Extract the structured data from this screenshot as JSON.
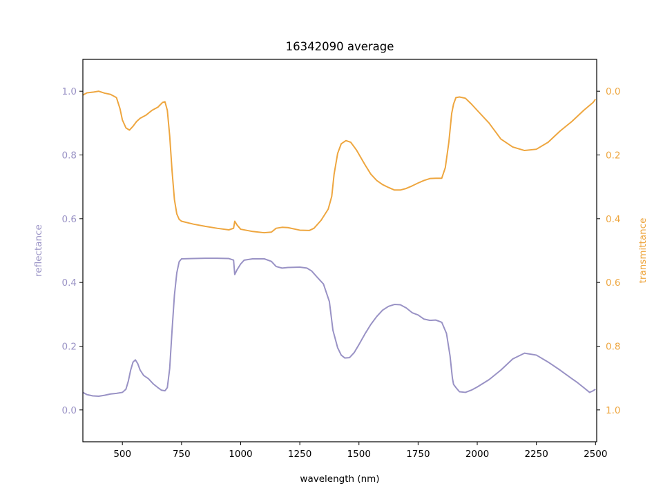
{
  "chart_data": {
    "type": "line",
    "title": "16342090 average",
    "xlabel": "wavelength (nm)",
    "y_left_label": "reflectance",
    "y_right_label": "transmittance",
    "xlim": [
      333,
      2505
    ],
    "y_left_lim": [
      -0.1,
      1.1
    ],
    "y_right_invert": true,
    "x_ticks": [
      500,
      750,
      1000,
      1250,
      1500,
      1750,
      2000,
      2250,
      2500
    ],
    "y_left_ticks": [
      "0.0",
      "0.2",
      "0.4",
      "0.6",
      "0.8",
      "1.0"
    ],
    "y_right_ticks": [
      "0.0",
      "0.2",
      "0.4",
      "0.6",
      "0.8",
      "1.0"
    ],
    "grid": false,
    "legend": "none",
    "colors": {
      "reflectance": "#9992c5",
      "transmittance": "#eea63f",
      "axis": "#000000"
    },
    "series": [
      {
        "name": "reflectance",
        "axis": "left",
        "points": [
          [
            333,
            0.055
          ],
          [
            350,
            0.048
          ],
          [
            375,
            0.044
          ],
          [
            400,
            0.043
          ],
          [
            425,
            0.046
          ],
          [
            450,
            0.05
          ],
          [
            475,
            0.052
          ],
          [
            500,
            0.055
          ],
          [
            515,
            0.065
          ],
          [
            525,
            0.09
          ],
          [
            535,
            0.125
          ],
          [
            545,
            0.15
          ],
          [
            555,
            0.157
          ],
          [
            565,
            0.145
          ],
          [
            575,
            0.125
          ],
          [
            590,
            0.108
          ],
          [
            610,
            0.098
          ],
          [
            630,
            0.082
          ],
          [
            650,
            0.07
          ],
          [
            665,
            0.062
          ],
          [
            680,
            0.06
          ],
          [
            690,
            0.07
          ],
          [
            700,
            0.13
          ],
          [
            710,
            0.25
          ],
          [
            720,
            0.36
          ],
          [
            730,
            0.43
          ],
          [
            740,
            0.465
          ],
          [
            750,
            0.474
          ],
          [
            800,
            0.475
          ],
          [
            850,
            0.476
          ],
          [
            900,
            0.476
          ],
          [
            950,
            0.475
          ],
          [
            970,
            0.47
          ],
          [
            975,
            0.425
          ],
          [
            985,
            0.44
          ],
          [
            1000,
            0.458
          ],
          [
            1015,
            0.47
          ],
          [
            1050,
            0.474
          ],
          [
            1100,
            0.474
          ],
          [
            1130,
            0.466
          ],
          [
            1150,
            0.45
          ],
          [
            1175,
            0.445
          ],
          [
            1200,
            0.447
          ],
          [
            1250,
            0.448
          ],
          [
            1280,
            0.445
          ],
          [
            1300,
            0.436
          ],
          [
            1325,
            0.415
          ],
          [
            1350,
            0.395
          ],
          [
            1375,
            0.34
          ],
          [
            1390,
            0.25
          ],
          [
            1410,
            0.195
          ],
          [
            1425,
            0.172
          ],
          [
            1440,
            0.163
          ],
          [
            1460,
            0.164
          ],
          [
            1480,
            0.18
          ],
          [
            1500,
            0.205
          ],
          [
            1525,
            0.238
          ],
          [
            1550,
            0.268
          ],
          [
            1575,
            0.293
          ],
          [
            1600,
            0.313
          ],
          [
            1625,
            0.325
          ],
          [
            1650,
            0.331
          ],
          [
            1675,
            0.33
          ],
          [
            1700,
            0.32
          ],
          [
            1725,
            0.305
          ],
          [
            1750,
            0.298
          ],
          [
            1775,
            0.285
          ],
          [
            1800,
            0.281
          ],
          [
            1825,
            0.282
          ],
          [
            1850,
            0.275
          ],
          [
            1870,
            0.24
          ],
          [
            1885,
            0.17
          ],
          [
            1895,
            0.1
          ],
          [
            1900,
            0.08
          ],
          [
            1910,
            0.07
          ],
          [
            1925,
            0.057
          ],
          [
            1950,
            0.055
          ],
          [
            1975,
            0.062
          ],
          [
            2000,
            0.072
          ],
          [
            2050,
            0.095
          ],
          [
            2100,
            0.125
          ],
          [
            2150,
            0.16
          ],
          [
            2200,
            0.178
          ],
          [
            2250,
            0.172
          ],
          [
            2300,
            0.15
          ],
          [
            2350,
            0.125
          ],
          [
            2400,
            0.098
          ],
          [
            2425,
            0.085
          ],
          [
            2450,
            0.07
          ],
          [
            2475,
            0.055
          ],
          [
            2490,
            0.06
          ],
          [
            2500,
            0.065
          ]
        ]
      },
      {
        "name": "transmittance",
        "axis": "right",
        "points": [
          [
            333,
            0.012
          ],
          [
            350,
            0.005
          ],
          [
            375,
            0.003
          ],
          [
            400,
            0.0
          ],
          [
            425,
            0.006
          ],
          [
            450,
            0.01
          ],
          [
            475,
            0.02
          ],
          [
            490,
            0.055
          ],
          [
            500,
            0.09
          ],
          [
            515,
            0.115
          ],
          [
            530,
            0.122
          ],
          [
            545,
            0.11
          ],
          [
            560,
            0.095
          ],
          [
            575,
            0.085
          ],
          [
            600,
            0.075
          ],
          [
            625,
            0.06
          ],
          [
            650,
            0.05
          ],
          [
            670,
            0.035
          ],
          [
            680,
            0.033
          ],
          [
            690,
            0.06
          ],
          [
            700,
            0.14
          ],
          [
            710,
            0.25
          ],
          [
            720,
            0.34
          ],
          [
            730,
            0.385
          ],
          [
            740,
            0.402
          ],
          [
            750,
            0.408
          ],
          [
            800,
            0.417
          ],
          [
            850,
            0.424
          ],
          [
            900,
            0.43
          ],
          [
            950,
            0.435
          ],
          [
            970,
            0.43
          ],
          [
            975,
            0.408
          ],
          [
            985,
            0.42
          ],
          [
            1000,
            0.433
          ],
          [
            1050,
            0.44
          ],
          [
            1100,
            0.444
          ],
          [
            1130,
            0.442
          ],
          [
            1150,
            0.43
          ],
          [
            1175,
            0.427
          ],
          [
            1200,
            0.428
          ],
          [
            1250,
            0.436
          ],
          [
            1290,
            0.437
          ],
          [
            1310,
            0.43
          ],
          [
            1340,
            0.405
          ],
          [
            1370,
            0.37
          ],
          [
            1385,
            0.33
          ],
          [
            1395,
            0.26
          ],
          [
            1410,
            0.195
          ],
          [
            1425,
            0.165
          ],
          [
            1445,
            0.155
          ],
          [
            1465,
            0.16
          ],
          [
            1490,
            0.185
          ],
          [
            1525,
            0.23
          ],
          [
            1550,
            0.26
          ],
          [
            1575,
            0.28
          ],
          [
            1600,
            0.293
          ],
          [
            1625,
            0.302
          ],
          [
            1650,
            0.31
          ],
          [
            1675,
            0.31
          ],
          [
            1700,
            0.305
          ],
          [
            1725,
            0.297
          ],
          [
            1750,
            0.288
          ],
          [
            1775,
            0.28
          ],
          [
            1800,
            0.274
          ],
          [
            1825,
            0.273
          ],
          [
            1850,
            0.273
          ],
          [
            1865,
            0.24
          ],
          [
            1880,
            0.16
          ],
          [
            1892,
            0.07
          ],
          [
            1900,
            0.04
          ],
          [
            1910,
            0.02
          ],
          [
            1925,
            0.018
          ],
          [
            1950,
            0.022
          ],
          [
            1975,
            0.04
          ],
          [
            2000,
            0.06
          ],
          [
            2050,
            0.1
          ],
          [
            2100,
            0.15
          ],
          [
            2150,
            0.175
          ],
          [
            2200,
            0.186
          ],
          [
            2250,
            0.182
          ],
          [
            2300,
            0.16
          ],
          [
            2350,
            0.125
          ],
          [
            2400,
            0.095
          ],
          [
            2450,
            0.06
          ],
          [
            2490,
            0.035
          ],
          [
            2500,
            0.025
          ]
        ]
      }
    ]
  }
}
